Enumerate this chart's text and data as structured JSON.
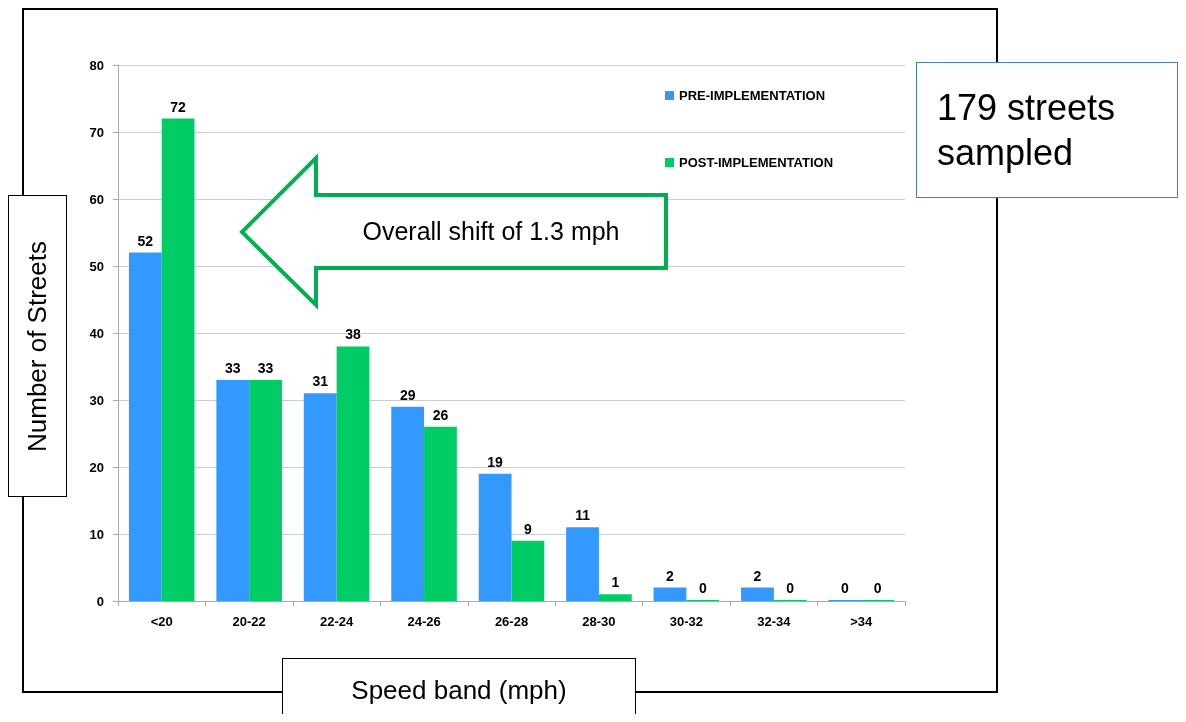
{
  "chart_data": {
    "type": "bar",
    "xlabel": "Speed band (mph)",
    "ylabel": "Number of Streets",
    "categories": [
      "<20",
      "20-22",
      "22-24",
      "24-26",
      "26-28",
      "28-30",
      "30-32",
      "32-34",
      ">34"
    ],
    "series": [
      {
        "name": "PRE-IMPLEMENTATION",
        "color": "#3399ff",
        "values": [
          52,
          33,
          31,
          29,
          19,
          11,
          2,
          2,
          0
        ]
      },
      {
        "name": "POST-IMPLEMENTATION",
        "color": "#00cc66",
        "values": [
          72,
          33,
          38,
          26,
          9,
          1,
          0,
          0,
          0
        ]
      }
    ],
    "ylim": [
      0,
      80
    ],
    "yticks": [
      0,
      10,
      20,
      30,
      40,
      50,
      60,
      70,
      80
    ],
    "grid": "y",
    "legend": "top right",
    "data_labels": true,
    "annotations": [
      "Overall shift of 1.3 mph",
      "179 streets sampled"
    ]
  }
}
